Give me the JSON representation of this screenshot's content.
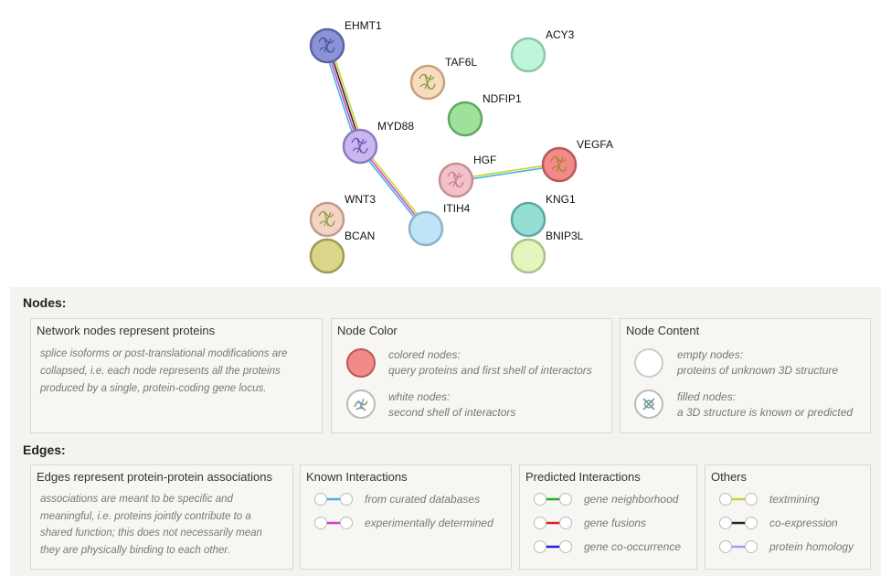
{
  "network": {
    "nodes": [
      {
        "id": "EHMT1",
        "label": "EHMT1",
        "color": "#8b93d6",
        "stroke": "#5b64a8",
        "structure": true,
        "struct_color": "#4a52a0"
      },
      {
        "id": "ACY3",
        "label": "ACY3",
        "color": "#bff5d8",
        "stroke": "#8cc7a8",
        "structure": false
      },
      {
        "id": "TAF6L",
        "label": "TAF6L",
        "color": "#f7dcbe",
        "stroke": "#c9a07d",
        "structure": true,
        "struct_color": "#8a9a3c"
      },
      {
        "id": "NDFIP1",
        "label": "NDFIP1",
        "color": "#9fe09b",
        "stroke": "#60a85d",
        "structure": false
      },
      {
        "id": "MYD88",
        "label": "MYD88",
        "color": "#c9b8f0",
        "stroke": "#8c7bc0",
        "structure": true,
        "struct_color": "#6b58b0"
      },
      {
        "id": "HGF",
        "label": "HGF",
        "color": "#f3c2c8",
        "stroke": "#c48e95",
        "structure": true,
        "struct_color": "#c77a98"
      },
      {
        "id": "VEGFA",
        "label": "VEGFA",
        "color": "#f28a8a",
        "stroke": "#b95858",
        "structure": true,
        "struct_color": "#b08030"
      },
      {
        "id": "WNT3",
        "label": "WNT3",
        "color": "#f3d3c3",
        "stroke": "#c49a86",
        "structure": true,
        "struct_color": "#8aa040"
      },
      {
        "id": "ITIH4",
        "label": "ITIH4",
        "color": "#bfe3f7",
        "stroke": "#8db3c8",
        "structure": false
      },
      {
        "id": "KNG1",
        "label": "KNG1",
        "color": "#95ded4",
        "stroke": "#5fa89e",
        "structure": false
      },
      {
        "id": "BCAN",
        "label": "BCAN",
        "color": "#d9d68c",
        "stroke": "#9e9b55",
        "structure": false
      },
      {
        "id": "BNIP3L",
        "label": "BNIP3L",
        "color": "#e3f7bc",
        "stroke": "#a9c285",
        "structure": false
      }
    ],
    "edges": [
      {
        "source": "EHMT1",
        "target": "MYD88",
        "colors": [
          "#c8d32e",
          "#262626",
          "#d040d0",
          "#46b3e0"
        ]
      },
      {
        "source": "MYD88",
        "target": "ITIH4",
        "colors": [
          "#c8d32e",
          "#d040d0",
          "#46b3e0"
        ]
      },
      {
        "source": "HGF",
        "target": "VEGFA",
        "colors": [
          "#c8d32e",
          "#46b3e0"
        ]
      }
    ]
  },
  "legend": {
    "nodes_title": "Nodes:",
    "edges_title": "Edges:",
    "network_nodes": {
      "title": "Network nodes represent proteins",
      "desc": [
        "splice isoforms or post-translational modifications are",
        "collapsed, i.e. each node represents all the proteins",
        "produced by a single, protein-coding gene locus."
      ]
    },
    "node_color": {
      "title": "Node Color",
      "colored_label": "colored nodes:",
      "colored_desc": "query proteins and first shell of interactors",
      "white_label": "white nodes:",
      "white_desc": "second shell of interactors",
      "colored_fill": "#f28a8a"
    },
    "node_content": {
      "title": "Node Content",
      "empty_label": "empty nodes:",
      "empty_desc": "proteins of unknown 3D structure",
      "filled_label": "filled nodes:",
      "filled_desc": "a 3D structure is known or predicted"
    },
    "edges_box": {
      "title": "Edges represent protein-protein associations",
      "desc": [
        "associations are meant to be specific and",
        "meaningful, i.e. proteins jointly contribute to a",
        "shared function; this does not necessarily mean",
        "they are physically binding to each other."
      ]
    },
    "known": {
      "title": "Known Interactions",
      "items": [
        {
          "label": "from curated databases",
          "color": "#46b3e0"
        },
        {
          "label": "experimentally determined",
          "color": "#d040d0"
        }
      ]
    },
    "predicted": {
      "title": "Predicted Interactions",
      "items": [
        {
          "label": "gene neighborhood",
          "color": "#22b022"
        },
        {
          "label": "gene fusions",
          "color": "#e02020"
        },
        {
          "label": "gene co-occurrence",
          "color": "#2020e0"
        }
      ]
    },
    "others": {
      "title": "Others",
      "items": [
        {
          "label": "textmining",
          "color": "#c8d32e"
        },
        {
          "label": "co-expression",
          "color": "#262626"
        },
        {
          "label": "protein homology",
          "color": "#9f9ff0"
        }
      ]
    }
  }
}
